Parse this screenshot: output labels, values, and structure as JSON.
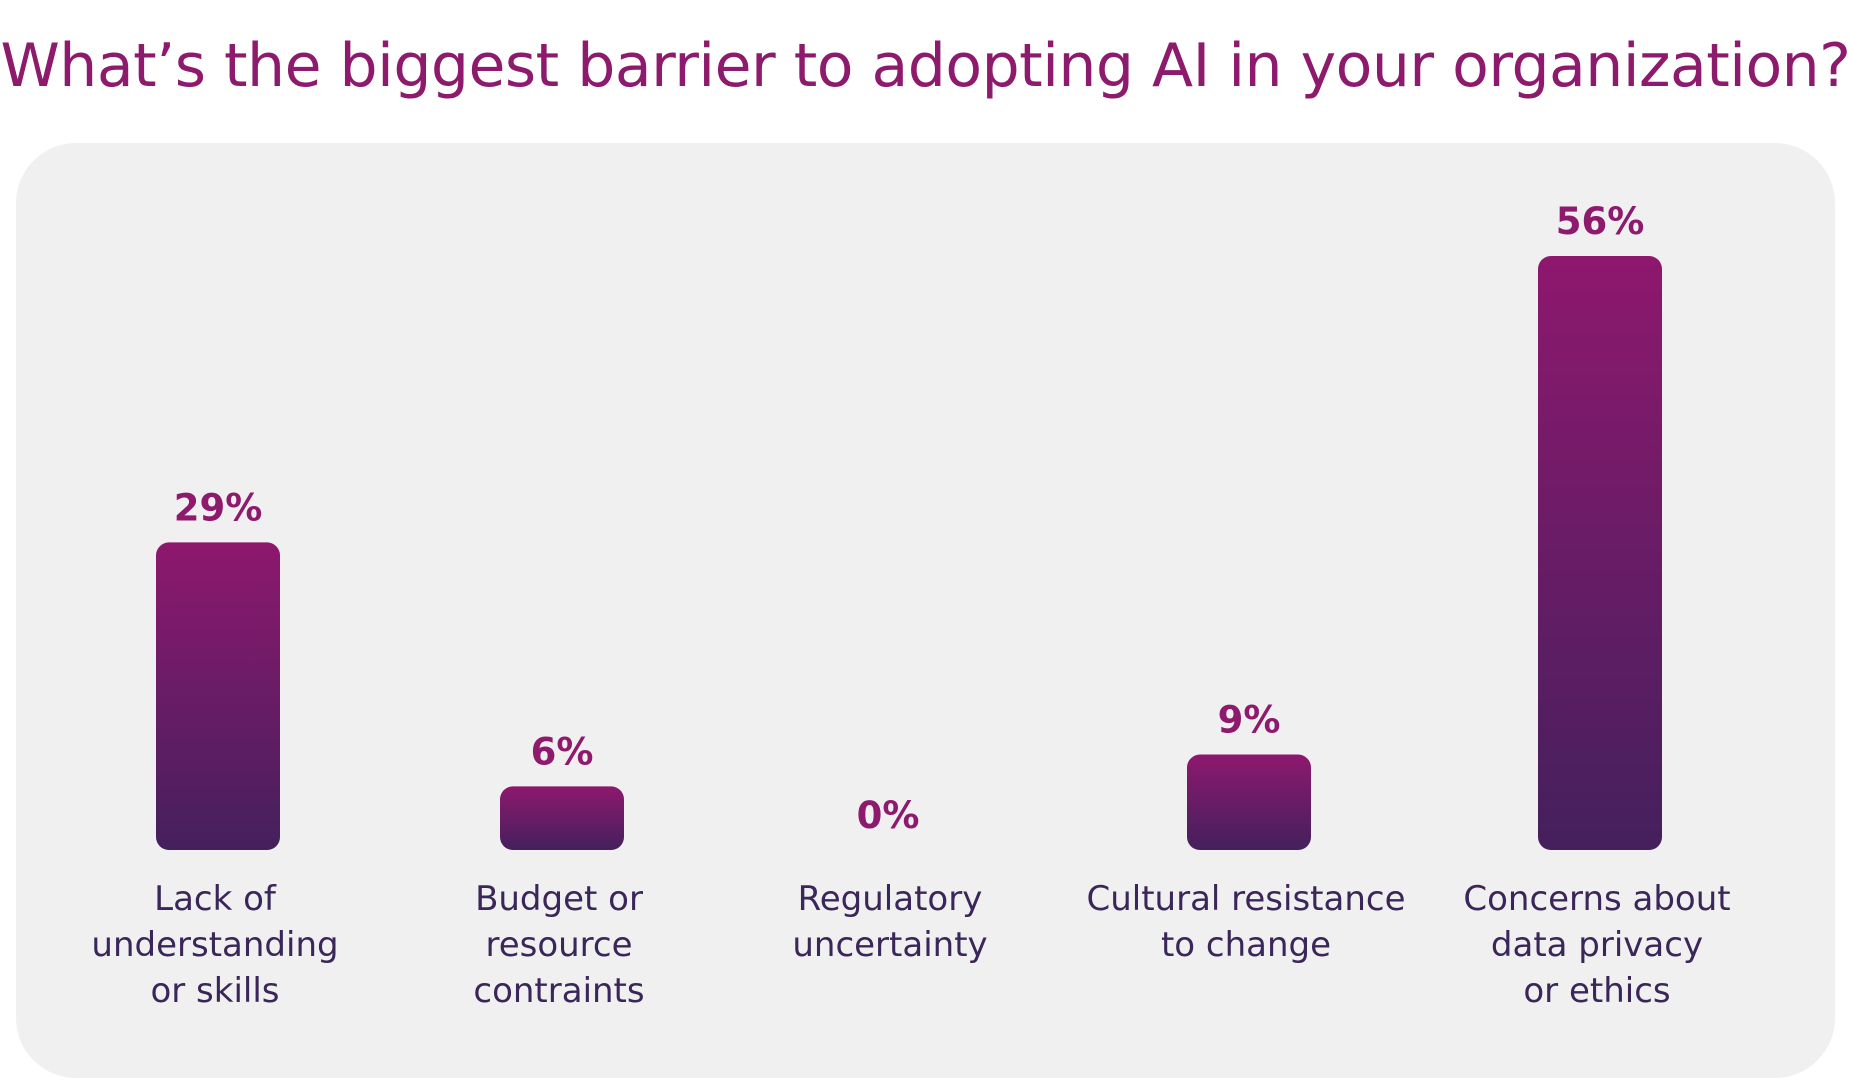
{
  "title": "What’s the biggest barrier to adopting AI in your organization?",
  "colors": {
    "title": "#8d1a6c",
    "bar_top": "#8e186e",
    "bar_bottom": "#44205c",
    "panel_background": "#f0f0f0",
    "value_label": "#8d1a6c",
    "category_label": "#3a2658"
  },
  "chart_data": {
    "type": "bar",
    "title": "What’s the biggest barrier to adopting AI in your organization?",
    "xlabel": "",
    "ylabel": "",
    "ylim": [
      0,
      56
    ],
    "grid": false,
    "categories": [
      [
        "Lack of",
        "understanding",
        "or skills"
      ],
      [
        "Budget or",
        "resource",
        "contraints"
      ],
      [
        "Regulatory",
        "uncertainty"
      ],
      [
        "Cultural resistance",
        "to change"
      ],
      [
        "Concerns about",
        "data privacy",
        "or ethics"
      ]
    ],
    "values": [
      29,
      6,
      0,
      9,
      56
    ],
    "value_labels": [
      "29%",
      "6%",
      "0%",
      "9%",
      "56%"
    ]
  }
}
